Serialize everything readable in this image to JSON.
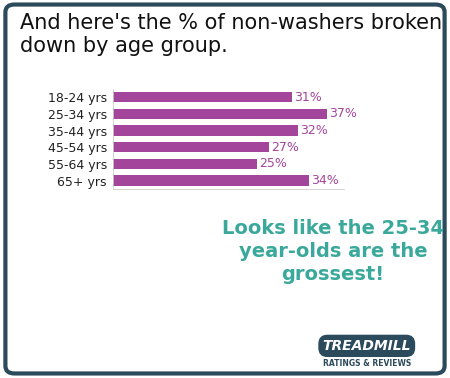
{
  "chart_data": {
    "type": "bar",
    "orientation": "horizontal",
    "title": "And here's the % of non-washers broken down by age group.",
    "categories": [
      "18-24 yrs",
      "25-34 yrs",
      "35-44 yrs",
      "45-54 yrs",
      "55-64 yrs",
      "65+ yrs"
    ],
    "values": [
      31,
      37,
      32,
      27,
      25,
      34
    ],
    "value_labels": [
      "31%",
      "37%",
      "32%",
      "27%",
      "25%",
      "34%"
    ],
    "data_labels": true,
    "color": "#a3459b",
    "xlim": [
      0,
      40
    ],
    "tick_labels": "y",
    "grid": false,
    "annotation": "Looks like the 25-34 year-olds are the grossest!",
    "brand": "TREADMILL",
    "brand_subtitle": "RATINGS & REVIEWS"
  }
}
